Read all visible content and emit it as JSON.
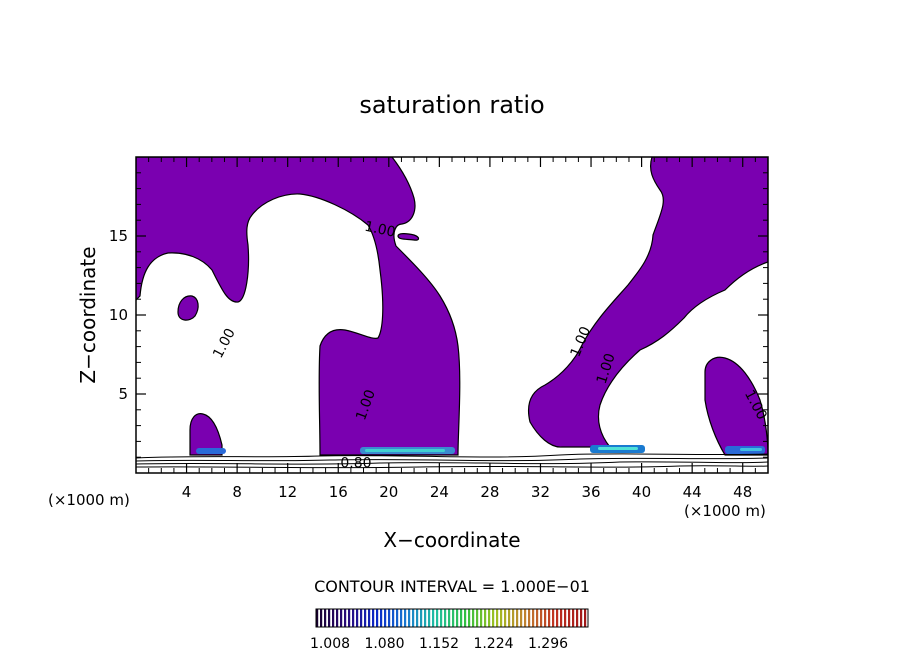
{
  "chart_data": {
    "type": "contour",
    "title": "saturation ratio",
    "xlabel": "X−coordinate",
    "ylabel": "Z−coordinate",
    "x_unit_left": "(×1000 m)",
    "x_unit_right": "(×1000 m)",
    "xlim": [
      0,
      50
    ],
    "ylim": [
      0,
      20
    ],
    "xticks": [
      4,
      8,
      12,
      16,
      20,
      24,
      28,
      32,
      36,
      40,
      44,
      48
    ],
    "yticks": [
      5,
      10,
      15
    ],
    "fill_color": "#7a00b0",
    "contour_labels": [
      {
        "text": "1.00",
        "x": 19.3,
        "z": 15.4,
        "angle": 12
      },
      {
        "text": "1.00",
        "x": 7.0,
        "z": 8.2,
        "angle": -62
      },
      {
        "text": "1.00",
        "x": 18.2,
        "z": 4.3,
        "angle": -70
      },
      {
        "text": "1.00",
        "x": 35.2,
        "z": 8.3,
        "angle": -68
      },
      {
        "text": "1.00",
        "x": 37.2,
        "z": 6.6,
        "angle": -72
      },
      {
        "text": "1.00",
        "x": 49.0,
        "z": 4.3,
        "angle": 62
      },
      {
        "text": "0.80",
        "x": 17.4,
        "z": 0.6,
        "angle": 0
      }
    ],
    "contour_interval_label": "CONTOUR INTERVAL = 1.000E−01",
    "colorbar": {
      "ticks": [
        "1.008",
        "1.080",
        "1.152",
        "1.224",
        "1.296"
      ],
      "colors": [
        "#180030",
        "#2a0a7a",
        "#0a28c8",
        "#1a7ad0",
        "#20c0a0",
        "#30c040",
        "#a0c020",
        "#c08030",
        "#c03020",
        "#a01818"
      ]
    }
  }
}
